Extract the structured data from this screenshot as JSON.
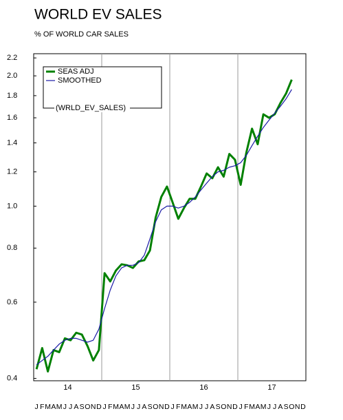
{
  "chart_data": {
    "type": "line",
    "title": "WORLD EV SALES",
    "subtitle": "% OF WORLD CAR SALES",
    "categories": [
      "J",
      "F",
      "M",
      "A",
      "M",
      "J",
      "J",
      "A",
      "S",
      "O",
      "N",
      "D",
      "J",
      "F",
      "M",
      "A",
      "M",
      "J",
      "J",
      "A",
      "S",
      "O",
      "N",
      "D",
      "J",
      "F",
      "M",
      "A",
      "M",
      "J",
      "J",
      "A",
      "S",
      "O",
      "N",
      "D",
      "J",
      "F",
      "M",
      "A",
      "M",
      "J",
      "J",
      "A",
      "S",
      "O",
      "N",
      "D"
    ],
    "year_labels": [
      "14",
      "15",
      "16",
      "17"
    ],
    "legend_title": "(WRLD_EV_SALES)",
    "legend": "upper left",
    "log_scale": true,
    "ylim": [
      0.395,
      2.25
    ],
    "yticks": [
      0.4,
      0.6,
      0.8,
      {
        "value": 1,
        "label": "1.0"
      },
      1.2,
      1.4,
      1.6,
      1.8,
      {
        "value": 2,
        "label": "2.0"
      },
      2.2
    ],
    "series": [
      {
        "name": "SEAS ADJ",
        "color": "#008000",
        "width": 3,
        "values": [
          0.42,
          0.47,
          0.415,
          0.465,
          0.46,
          0.495,
          0.49,
          0.51,
          0.505,
          0.475,
          0.44,
          0.465,
          0.7,
          0.67,
          0.71,
          0.734,
          0.73,
          0.72,
          0.745,
          0.75,
          0.79,
          0.94,
          1.05,
          1.11,
          1.02,
          0.935,
          0.99,
          1.04,
          1.04,
          1.11,
          1.19,
          1.16,
          1.23,
          1.17,
          1.32,
          1.28,
          1.12,
          1.33,
          1.51,
          1.39,
          1.63,
          1.6,
          1.63,
          1.73,
          1.82,
          1.96,
          null,
          null
        ]
      },
      {
        "name": "SMOOTHED",
        "color": "#1a1aa6",
        "width": 1.2,
        "values": [
          0.43,
          0.44,
          0.45,
          0.465,
          0.48,
          0.49,
          0.495,
          0.495,
          0.49,
          0.485,
          0.49,
          0.52,
          0.58,
          0.64,
          0.69,
          0.72,
          0.73,
          0.73,
          0.74,
          0.77,
          0.84,
          0.92,
          0.98,
          1.0,
          1.0,
          0.99,
          1.0,
          1.02,
          1.05,
          1.09,
          1.13,
          1.17,
          1.2,
          1.21,
          1.23,
          1.24,
          1.26,
          1.31,
          1.38,
          1.45,
          1.52,
          1.58,
          1.64,
          1.7,
          1.77,
          1.86,
          null,
          null
        ]
      }
    ]
  }
}
